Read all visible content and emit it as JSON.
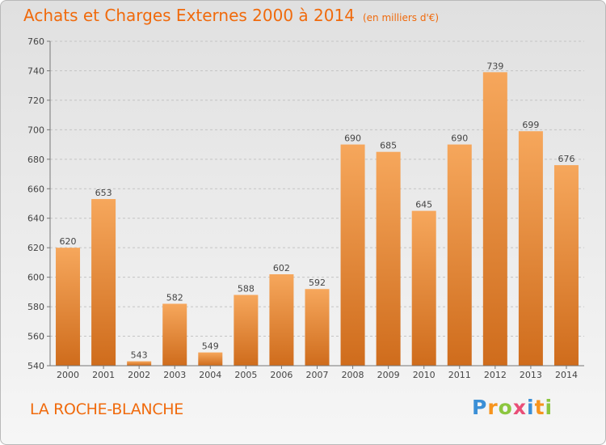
{
  "header": {
    "title": "Achats et Charges Externes 2000 à 2014",
    "unit": "(en milliers d'€)"
  },
  "footer": {
    "commune": "LA ROCHE-BLANCHE",
    "logo": [
      "P",
      "r",
      "o",
      "x",
      "i",
      "t",
      "i"
    ]
  },
  "colors": {
    "accent": "#f06a0c",
    "bar_top": "#f6a75c",
    "bar_bottom": "#cf6c1c",
    "logo": [
      "#3b8fd6",
      "#f7941d",
      "#8cc63f",
      "#e94e77",
      "#3b8fd6",
      "#f7941d",
      "#8cc63f"
    ]
  },
  "chart_data": {
    "type": "bar",
    "title": "Achats et Charges Externes 2000 à 2014",
    "subtitle": "(en milliers d'€)",
    "categories": [
      "2000",
      "2001",
      "2002",
      "2003",
      "2004",
      "2005",
      "2006",
      "2007",
      "2008",
      "2009",
      "2010",
      "2011",
      "2012",
      "2013",
      "2014"
    ],
    "values": [
      620,
      653,
      543,
      582,
      549,
      588,
      602,
      592,
      690,
      685,
      645,
      690,
      739,
      699,
      676
    ],
    "ylim": [
      540,
      760
    ],
    "yticks": [
      540,
      560,
      580,
      600,
      620,
      640,
      660,
      680,
      700,
      720,
      740,
      760
    ],
    "grid": "horizontal dashed",
    "data_labels": true
  }
}
